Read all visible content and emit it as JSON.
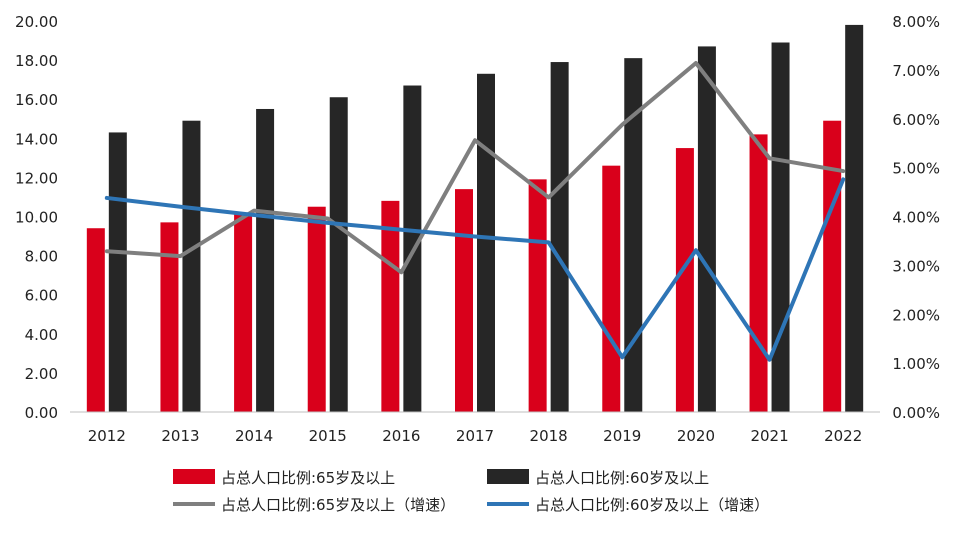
{
  "chart_data": {
    "type": "bar",
    "title": "",
    "xlabel": "",
    "ylabel": "",
    "categories": [
      "2012",
      "2013",
      "2014",
      "2015",
      "2016",
      "2017",
      "2018",
      "2019",
      "2020",
      "2021",
      "2022"
    ],
    "left_axis": {
      "ylim": [
        0,
        20
      ],
      "ticks": [
        "0.00",
        "2.00",
        "4.00",
        "6.00",
        "8.00",
        "10.00",
        "12.00",
        "14.00",
        "16.00",
        "18.00",
        "20.00"
      ]
    },
    "right_axis": {
      "ylim": [
        0,
        8
      ],
      "ticks": [
        "0.00%",
        "1.00%",
        "2.00%",
        "3.00%",
        "4.00%",
        "5.00%",
        "6.00%",
        "7.00%",
        "8.00%"
      ]
    },
    "series": [
      {
        "name": "占总人口比例:65岁及以上",
        "type": "bar",
        "axis": "left",
        "color": "#d9001b",
        "values": [
          9.4,
          9.7,
          10.1,
          10.5,
          10.8,
          11.4,
          11.9,
          12.6,
          13.5,
          14.2,
          14.9
        ]
      },
      {
        "name": "占总人口比例:60岁及以上",
        "type": "bar",
        "axis": "left",
        "color": "#262626",
        "values": [
          14.3,
          14.9,
          15.5,
          16.1,
          16.7,
          17.3,
          17.9,
          18.1,
          18.7,
          18.9,
          19.8
        ]
      },
      {
        "name": "占总人口比例:65岁及以上（增速）",
        "type": "line",
        "axis": "right",
        "color": "#7f7f7f",
        "values": [
          3.29,
          3.19,
          4.12,
          3.96,
          2.86,
          5.56,
          4.39,
          5.88,
          7.14,
          5.19,
          4.93
        ]
      },
      {
        "name": "占总人口比例:60岁及以上（增速）",
        "type": "line",
        "axis": "right",
        "color": "#2e75b6",
        "values": [
          4.38,
          4.2,
          4.03,
          3.87,
          3.73,
          3.59,
          3.47,
          1.12,
          3.31,
          1.07,
          4.76
        ]
      }
    ],
    "legend_position": "bottom",
    "grid": false
  }
}
